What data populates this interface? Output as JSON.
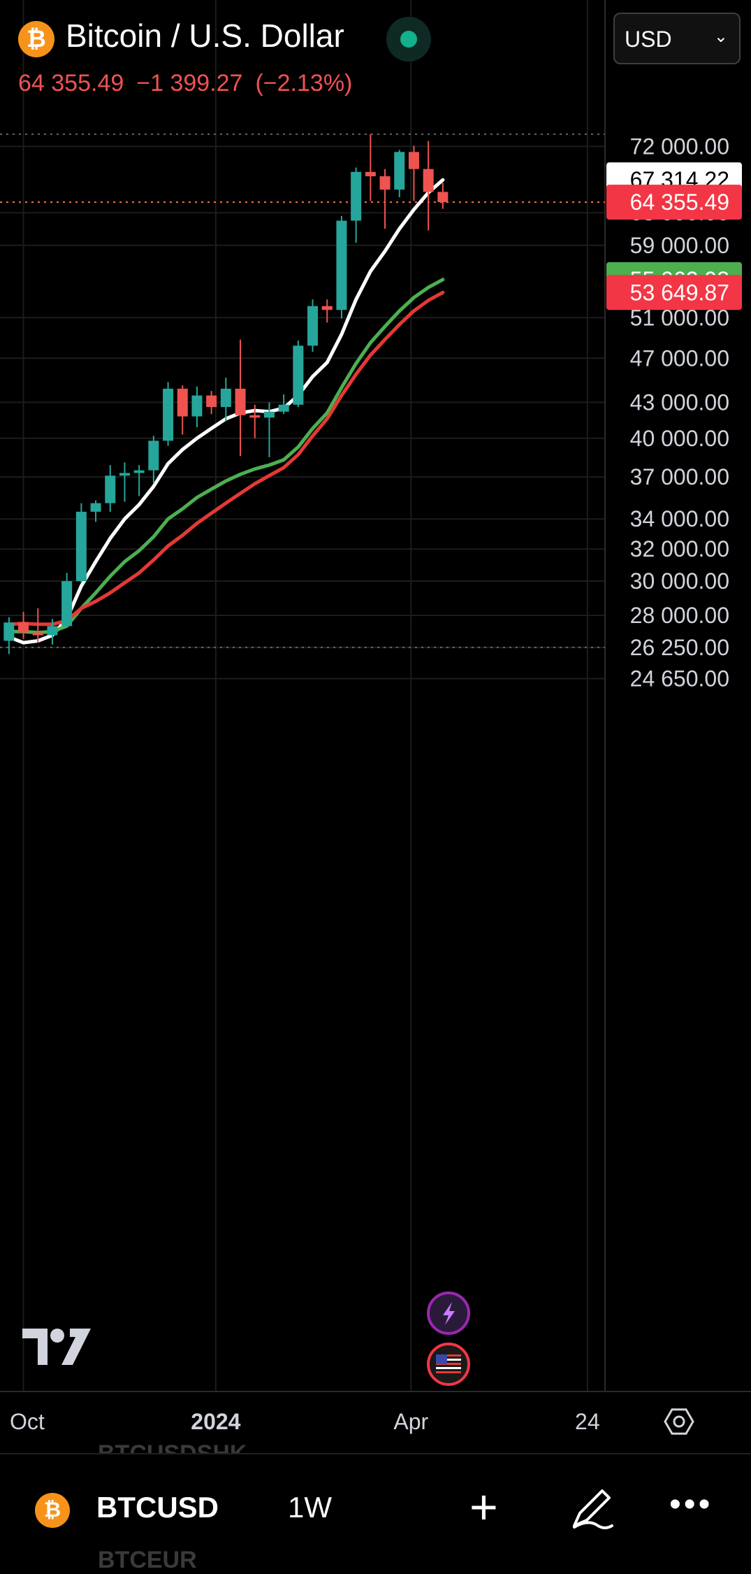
{
  "header": {
    "title": "Bitcoin / U.S. Dollar",
    "coin_icon": "bitcoin-icon",
    "last_price": "64 355.49",
    "change": "−1 399.27",
    "change_pct": "(−2.13%)",
    "currency": "USD"
  },
  "colors": {
    "up": "#26a69a",
    "down": "#ef5350",
    "ma_white": "#ffffff",
    "ma_green": "#4caf50",
    "ma_red": "#e53935",
    "grid": "#1c1c1c"
  },
  "chart_data": {
    "type": "candlestick",
    "interval": "1W",
    "symbol": "BTCUSD",
    "y_scale": "log",
    "ylim": [
      23500,
      76000
    ],
    "y_ticks": [
      {
        "value": 72000,
        "label": "72 000.00"
      },
      {
        "value": 63000,
        "label": "63 000.00"
      },
      {
        "value": 59000,
        "label": "59 000.00"
      },
      {
        "value": 51000,
        "label": "51 000.00"
      },
      {
        "value": 47000,
        "label": "47 000.00"
      },
      {
        "value": 43000,
        "label": "43 000.00"
      },
      {
        "value": 40000,
        "label": "40 000.00"
      },
      {
        "value": 37000,
        "label": "37 000.00"
      },
      {
        "value": 34000,
        "label": "34 000.00"
      },
      {
        "value": 32000,
        "label": "32 000.00"
      },
      {
        "value": 30000,
        "label": "30 000.00"
      },
      {
        "value": 28000,
        "label": "28 000.00"
      },
      {
        "value": 26250,
        "label": "26 250.00"
      },
      {
        "value": 24650,
        "label": "24 650.00"
      }
    ],
    "x_ticks": [
      {
        "index": 1.5,
        "label": "Oct"
      },
      {
        "index": 14.8,
        "label": "2024"
      },
      {
        "index": 28.3,
        "label": "Apr"
      },
      {
        "index": 40.5,
        "label": "24"
      }
    ],
    "price_labels": [
      {
        "value": 67314.22,
        "text": "67 314.22",
        "style": "white"
      },
      {
        "value": 64355.49,
        "text": "64 355.49",
        "style": "red"
      },
      {
        "value": 55062.98,
        "text": "55 062.98",
        "style": "green"
      },
      {
        "value": 53649.87,
        "text": "53 649.87",
        "style": "red"
      }
    ],
    "dotted_levels": [
      73800,
      64355.49,
      26250
    ],
    "candles": [
      {
        "o": 26600,
        "h": 27900,
        "l": 25900,
        "c": 27600
      },
      {
        "o": 27600,
        "h": 28200,
        "l": 26700,
        "c": 27050
      },
      {
        "o": 27050,
        "h": 28400,
        "l": 26500,
        "c": 26900
      },
      {
        "o": 26900,
        "h": 27800,
        "l": 26400,
        "c": 27400
      },
      {
        "o": 27400,
        "h": 30500,
        "l": 27300,
        "c": 30000
      },
      {
        "o": 30000,
        "h": 35100,
        "l": 29900,
        "c": 34500
      },
      {
        "o": 34500,
        "h": 35300,
        "l": 33800,
        "c": 35100
      },
      {
        "o": 35100,
        "h": 37900,
        "l": 34500,
        "c": 37100
      },
      {
        "o": 37100,
        "h": 38100,
        "l": 35200,
        "c": 37300
      },
      {
        "o": 37300,
        "h": 37900,
        "l": 35600,
        "c": 37500
      },
      {
        "o": 37500,
        "h": 40200,
        "l": 36500,
        "c": 39800
      },
      {
        "o": 39800,
        "h": 44800,
        "l": 39400,
        "c": 44200
      },
      {
        "o": 44200,
        "h": 44500,
        "l": 40300,
        "c": 41800
      },
      {
        "o": 41800,
        "h": 44400,
        "l": 40900,
        "c": 43600
      },
      {
        "o": 43600,
        "h": 44000,
        "l": 42000,
        "c": 42600
      },
      {
        "o": 42600,
        "h": 45200,
        "l": 41400,
        "c": 44200
      },
      {
        "o": 44200,
        "h": 48800,
        "l": 38600,
        "c": 41900
      },
      {
        "o": 41900,
        "h": 42800,
        "l": 40000,
        "c": 41700
      },
      {
        "o": 41700,
        "h": 43000,
        "l": 38500,
        "c": 42200
      },
      {
        "o": 42200,
        "h": 43700,
        "l": 42000,
        "c": 42800
      },
      {
        "o": 42800,
        "h": 48700,
        "l": 42600,
        "c": 48200
      },
      {
        "o": 48200,
        "h": 52900,
        "l": 47600,
        "c": 52200
      },
      {
        "o": 52200,
        "h": 52900,
        "l": 50500,
        "c": 51800
      },
      {
        "o": 51800,
        "h": 62600,
        "l": 50900,
        "c": 62000
      },
      {
        "o": 62000,
        "h": 69000,
        "l": 59300,
        "c": 68400
      },
      {
        "o": 68400,
        "h": 73800,
        "l": 64500,
        "c": 67800
      },
      {
        "o": 67800,
        "h": 68800,
        "l": 61000,
        "c": 66000
      },
      {
        "o": 66000,
        "h": 71500,
        "l": 65000,
        "c": 71200
      },
      {
        "o": 71200,
        "h": 72100,
        "l": 64500,
        "c": 68800
      },
      {
        "o": 68800,
        "h": 72800,
        "l": 60800,
        "c": 65700
      },
      {
        "o": 65700,
        "h": 66900,
        "l": 63500,
        "c": 64355.49
      }
    ],
    "series": [
      {
        "style": "white",
        "values": [
          26800,
          26500,
          26600,
          26900,
          27800,
          29700,
          31200,
          32700,
          34000,
          35000,
          36300,
          38000,
          39100,
          40000,
          40800,
          41600,
          42100,
          42300,
          42200,
          42500,
          43600,
          45300,
          46600,
          49300,
          52900,
          56000,
          58300,
          61000,
          63400,
          65600,
          67314.22
        ]
      },
      {
        "style": "green",
        "values": [
          27100,
          27100,
          27050,
          27100,
          27400,
          28400,
          29300,
          30300,
          31200,
          31900,
          32800,
          34000,
          34700,
          35500,
          36100,
          36700,
          37200,
          37600,
          37900,
          38300,
          39300,
          40800,
          42100,
          44300,
          46500,
          48500,
          50100,
          51700,
          53100,
          54200,
          55062.98
        ]
      },
      {
        "style": "red",
        "values": [
          27500,
          27550,
          27500,
          27500,
          27700,
          28400,
          28800,
          29300,
          29900,
          30500,
          31300,
          32200,
          32900,
          33700,
          34400,
          35100,
          35800,
          36500,
          37100,
          37700,
          38700,
          40200,
          41600,
          43600,
          45500,
          47300,
          48800,
          50300,
          51700,
          52800,
          53649.87
        ]
      }
    ]
  },
  "markers": {
    "flash_icon": "lightning-icon",
    "flag_icon": "us-flag-icon"
  },
  "footer": {
    "symbol": "BTCUSD",
    "interval": "1W",
    "ghost_top": "BTCUSDSHK",
    "ghost_bottom": "BTCEUR",
    "add_icon": "plus-icon",
    "draw_icon": "pen-icon",
    "more_icon": "more-icon"
  }
}
